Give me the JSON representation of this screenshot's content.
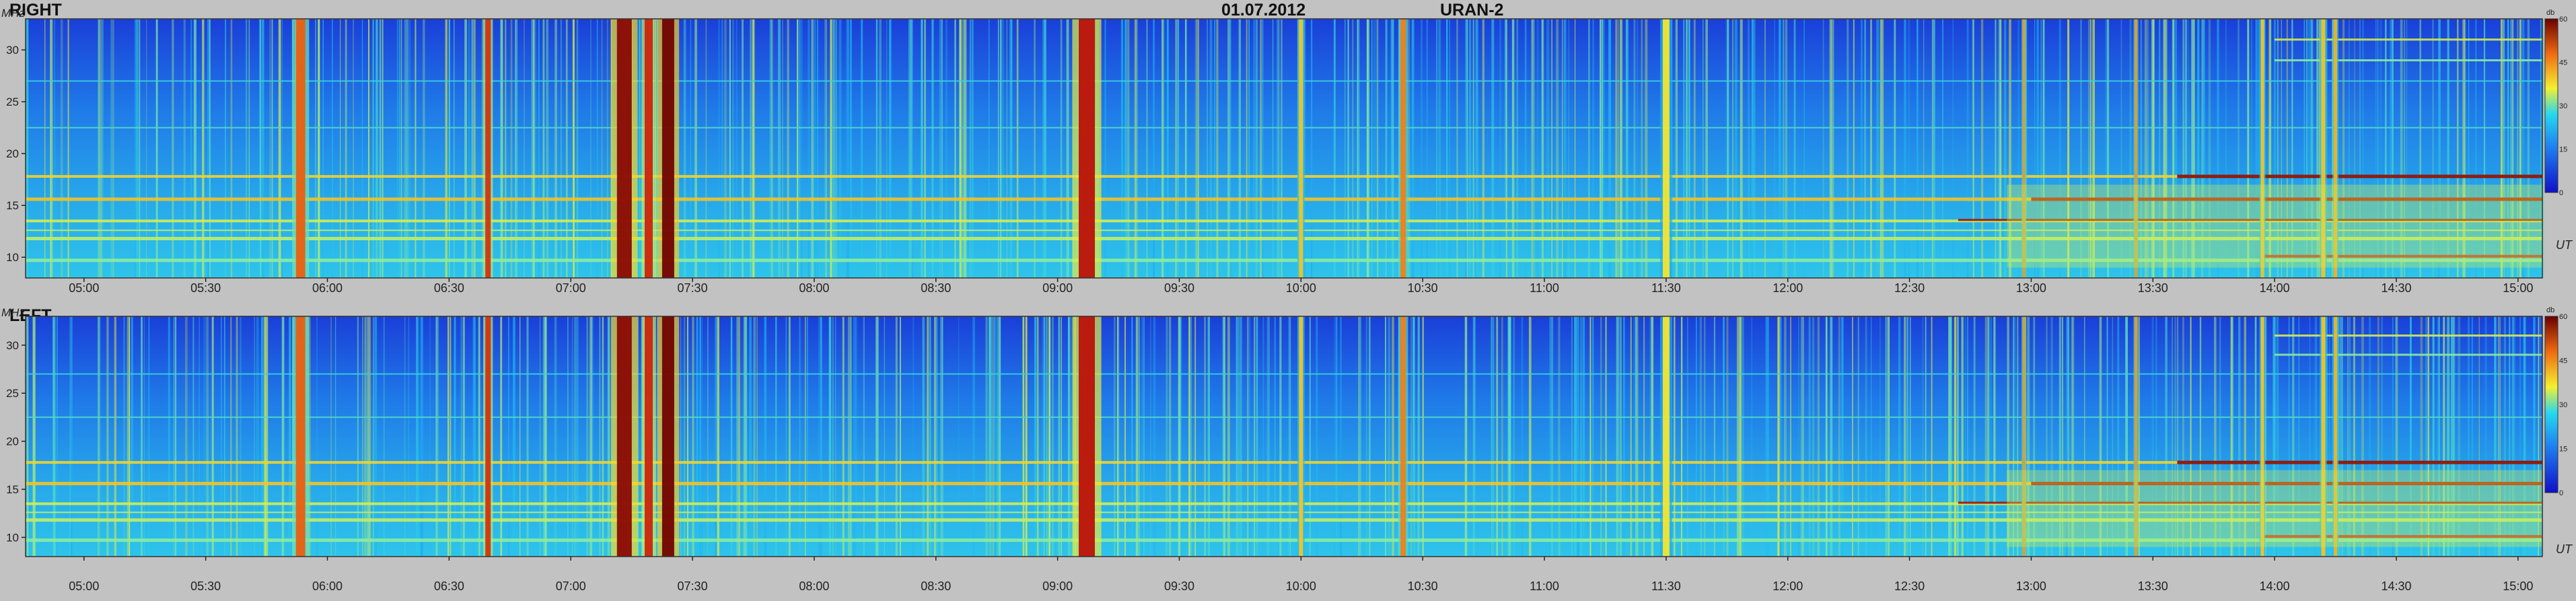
{
  "header": {
    "date": "01.07.2012",
    "instrument": "URAN-2"
  },
  "chart_data": [
    {
      "type": "heatmap",
      "title": "RIGHT",
      "ylabel": "MHz",
      "xlabel": "UT",
      "ylim": [
        8,
        33
      ],
      "yticks": [
        "10",
        "15",
        "20",
        "25",
        "30"
      ],
      "xticks": [
        "05:00",
        "05:30",
        "06:00",
        "06:30",
        "07:00",
        "07:30",
        "08:00",
        "08:30",
        "09:00",
        "09:30",
        "10:00",
        "10:30",
        "11:00",
        "11:30",
        "12:00",
        "12:30",
        "13:00",
        "13:30",
        "14:00",
        "14:30",
        "15:00"
      ],
      "colorbar": {
        "unit": "db",
        "ticks": [
          "0",
          "15",
          "30",
          "45",
          "60"
        ],
        "range": [
          0,
          60
        ]
      }
    },
    {
      "type": "heatmap",
      "title": "LEFT",
      "ylabel": "MHz",
      "xlabel": "UT",
      "ylim": [
        8,
        33
      ],
      "yticks": [
        "10",
        "15",
        "20",
        "25",
        "30"
      ],
      "xticks": [
        "05:00",
        "05:30",
        "06:00",
        "06:30",
        "07:00",
        "07:30",
        "08:00",
        "08:30",
        "09:00",
        "09:30",
        "10:00",
        "10:30",
        "11:00",
        "11:30",
        "12:00",
        "12:30",
        "13:00",
        "13:30",
        "14:00",
        "14:30",
        "15:00"
      ],
      "colorbar": {
        "unit": "db",
        "ticks": [
          "0",
          "15",
          "30",
          "45",
          "60"
        ],
        "range": [
          0,
          60
        ]
      }
    }
  ],
  "colors": {
    "low": "#0a35d6",
    "mid": "#22c8ee",
    "high": "#f2e02a",
    "peak": "#d01a0a",
    "background": "#c2c2c2"
  }
}
